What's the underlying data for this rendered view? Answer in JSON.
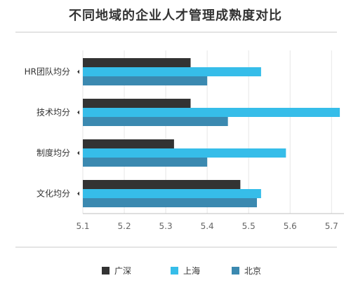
{
  "chart_data": {
    "type": "bar",
    "orientation": "horizontal",
    "title": "不同地域的企业人才管理成熟度对比",
    "categories": [
      "HR团队均分",
      "技术均分",
      "制度均分",
      "文化均分"
    ],
    "series": [
      {
        "name": "广深",
        "color": "#333333",
        "values": [
          5.36,
          5.36,
          5.32,
          5.48
        ]
      },
      {
        "name": "上海",
        "color": "#36bde9",
        "values": [
          5.53,
          5.72,
          5.59,
          5.53
        ]
      },
      {
        "name": "北京",
        "color": "#3b89b0",
        "values": [
          5.4,
          5.45,
          5.4,
          5.52
        ]
      }
    ],
    "xlim": [
      5.1,
      5.73
    ],
    "ticks": [
      "5.1",
      "5.2",
      "5.3",
      "5.4",
      "5.5",
      "5.6",
      "5.7"
    ],
    "grid": true,
    "legend_position": "bottom"
  }
}
